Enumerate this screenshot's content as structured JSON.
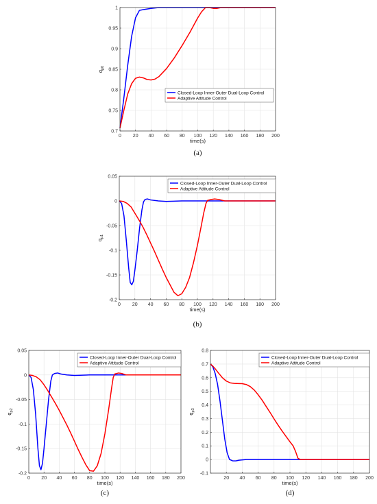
{
  "chart_data": [
    {
      "id": "a",
      "type": "line",
      "caption": "(a)",
      "xlabel": "time(s)",
      "ylabel_base": "q",
      "ylabel_sub": "p0",
      "xlim": [
        0,
        200
      ],
      "ylim": [
        0.7,
        1.0
      ],
      "xticks": [
        0,
        20,
        40,
        60,
        80,
        100,
        120,
        140,
        160,
        180,
        200
      ],
      "yticks": [
        0.7,
        0.75,
        0.8,
        0.85,
        0.9,
        0.95,
        1
      ],
      "ytick_labels": [
        "0.7",
        "0.75",
        "0.8",
        "0.85",
        "0.9",
        "0.95",
        "1"
      ],
      "grid": true,
      "legend_position": "lower-right",
      "series": [
        {
          "name": "Closed-Loop Inner-Outer Dual-Loop Control",
          "color": "#0000ff",
          "points": [
            [
              0,
              0.707
            ],
            [
              5,
              0.78
            ],
            [
              10,
              0.86
            ],
            [
              15,
              0.93
            ],
            [
              20,
              0.975
            ],
            [
              25,
              0.993
            ],
            [
              30,
              0.995
            ],
            [
              40,
              0.998
            ],
            [
              50,
              1.0
            ],
            [
              60,
              1.0
            ],
            [
              100,
              1.0
            ],
            [
              150,
              1.0
            ],
            [
              200,
              1.0
            ]
          ]
        },
        {
          "name": "Adaptive Attitude Control",
          "color": "#ff0000",
          "points": [
            [
              0,
              0.707
            ],
            [
              5,
              0.75
            ],
            [
              10,
              0.79
            ],
            [
              15,
              0.815
            ],
            [
              20,
              0.828
            ],
            [
              25,
              0.831
            ],
            [
              30,
              0.829
            ],
            [
              35,
              0.825
            ],
            [
              40,
              0.824
            ],
            [
              45,
              0.826
            ],
            [
              50,
              0.832
            ],
            [
              60,
              0.852
            ],
            [
              70,
              0.878
            ],
            [
              80,
              0.908
            ],
            [
              90,
              0.94
            ],
            [
              100,
              0.975
            ],
            [
              105,
              0.99
            ],
            [
              110,
              1.0
            ],
            [
              115,
              1.0
            ],
            [
              120,
              0.998
            ],
            [
              125,
              0.998
            ],
            [
              130,
              1.0
            ],
            [
              150,
              1.0
            ],
            [
              200,
              1.0
            ]
          ]
        }
      ]
    },
    {
      "id": "b",
      "type": "line",
      "caption": "(b)",
      "xlabel": "time(s)",
      "ylabel_base": "q",
      "ylabel_sub": "p1",
      "xlim": [
        0,
        200
      ],
      "ylim": [
        -0.2,
        0.05
      ],
      "xticks": [
        0,
        20,
        40,
        60,
        80,
        100,
        120,
        140,
        160,
        180,
        200
      ],
      "yticks": [
        -0.2,
        -0.15,
        -0.1,
        -0.05,
        0,
        0.05
      ],
      "ytick_labels": [
        "-0.2",
        "-0.15",
        "-0.1",
        "-0.05",
        "0",
        "0.05"
      ],
      "grid": true,
      "legend_position": "top-right",
      "series": [
        {
          "name": "Closed-Loop Inner-Outer Dual-Loop Control",
          "color": "#0000ff",
          "points": [
            [
              0,
              0
            ],
            [
              3,
              -0.005
            ],
            [
              6,
              -0.03
            ],
            [
              9,
              -0.08
            ],
            [
              12,
              -0.135
            ],
            [
              14,
              -0.165
            ],
            [
              16,
              -0.17
            ],
            [
              18,
              -0.163
            ],
            [
              20,
              -0.14
            ],
            [
              23,
              -0.1
            ],
            [
              26,
              -0.055
            ],
            [
              29,
              -0.018
            ],
            [
              31,
              -0.002
            ],
            [
              33,
              0.003
            ],
            [
              36,
              0.004
            ],
            [
              40,
              0.002
            ],
            [
              50,
              0
            ],
            [
              60,
              -0.001
            ],
            [
              80,
              0
            ],
            [
              200,
              0
            ]
          ]
        },
        {
          "name": "Adaptive Attitude Control",
          "color": "#ff0000",
          "points": [
            [
              0,
              0
            ],
            [
              5,
              -0.001
            ],
            [
              10,
              -0.005
            ],
            [
              15,
              -0.012
            ],
            [
              20,
              -0.025
            ],
            [
              25,
              -0.038
            ],
            [
              30,
              -0.052
            ],
            [
              35,
              -0.068
            ],
            [
              40,
              -0.085
            ],
            [
              45,
              -0.102
            ],
            [
              50,
              -0.12
            ],
            [
              55,
              -0.138
            ],
            [
              60,
              -0.155
            ],
            [
              65,
              -0.17
            ],
            [
              70,
              -0.185
            ],
            [
              75,
              -0.192
            ],
            [
              80,
              -0.188
            ],
            [
              85,
              -0.175
            ],
            [
              90,
              -0.155
            ],
            [
              95,
              -0.125
            ],
            [
              100,
              -0.09
            ],
            [
              105,
              -0.05
            ],
            [
              108,
              -0.025
            ],
            [
              111,
              -0.005
            ],
            [
              113,
              0.001
            ],
            [
              118,
              0.003
            ],
            [
              122,
              0.004
            ],
            [
              127,
              0.003
            ],
            [
              135,
              0
            ],
            [
              200,
              0
            ]
          ]
        }
      ]
    },
    {
      "id": "c",
      "type": "line",
      "caption": "(c)",
      "xlabel": "time(s)",
      "ylabel_base": "q",
      "ylabel_sub": "p2",
      "xlim": [
        0,
        200
      ],
      "ylim": [
        -0.2,
        0.05
      ],
      "xticks": [
        0,
        20,
        40,
        60,
        80,
        100,
        120,
        140,
        160,
        180,
        200
      ],
      "yticks": [
        -0.2,
        -0.15,
        -0.1,
        -0.05,
        0,
        0.05
      ],
      "ytick_labels": [
        "-0.2",
        "-0.15",
        "-0.1",
        "-0.05",
        "0",
        "0.05"
      ],
      "grid": true,
      "legend_position": "top-right",
      "series": [
        {
          "name": "Closed-Loop Inner-Outer Dual-Loop Control",
          "color": "#0000ff",
          "points": [
            [
              0,
              0
            ],
            [
              3,
              -0.005
            ],
            [
              6,
              -0.03
            ],
            [
              9,
              -0.08
            ],
            [
              12,
              -0.15
            ],
            [
              14,
              -0.185
            ],
            [
              16,
              -0.193
            ],
            [
              18,
              -0.18
            ],
            [
              20,
              -0.15
            ],
            [
              23,
              -0.1
            ],
            [
              26,
              -0.05
            ],
            [
              29,
              -0.012
            ],
            [
              31,
              0
            ],
            [
              34,
              0.003
            ],
            [
              38,
              0.004
            ],
            [
              42,
              0.002
            ],
            [
              50,
              0
            ],
            [
              60,
              -0.001
            ],
            [
              80,
              0
            ],
            [
              200,
              0
            ]
          ]
        },
        {
          "name": "Adaptive Attitude Control",
          "color": "#ff0000",
          "points": [
            [
              0,
              0
            ],
            [
              5,
              -0.001
            ],
            [
              10,
              -0.004
            ],
            [
              15,
              -0.01
            ],
            [
              20,
              -0.02
            ],
            [
              25,
              -0.032
            ],
            [
              30,
              -0.045
            ],
            [
              35,
              -0.058
            ],
            [
              40,
              -0.072
            ],
            [
              45,
              -0.087
            ],
            [
              50,
              -0.102
            ],
            [
              55,
              -0.118
            ],
            [
              60,
              -0.135
            ],
            [
              65,
              -0.152
            ],
            [
              70,
              -0.168
            ],
            [
              75,
              -0.183
            ],
            [
              80,
              -0.195
            ],
            [
              85,
              -0.196
            ],
            [
              90,
              -0.185
            ],
            [
              95,
              -0.16
            ],
            [
              100,
              -0.12
            ],
            [
              105,
              -0.07
            ],
            [
              109,
              -0.025
            ],
            [
              111,
              -0.005
            ],
            [
              113,
              0.002
            ],
            [
              118,
              0.004
            ],
            [
              122,
              0.003
            ],
            [
              128,
              0
            ],
            [
              200,
              0
            ]
          ]
        }
      ]
    },
    {
      "id": "d",
      "type": "line",
      "caption": "(d)",
      "xlabel": "time(s)",
      "ylabel_base": "q",
      "ylabel_sub": "p3",
      "xlim": [
        0,
        200
      ],
      "ylim": [
        -0.1,
        0.8
      ],
      "xticks": [
        20,
        40,
        60,
        80,
        100,
        120,
        140,
        160,
        180,
        200
      ],
      "yticks": [
        -0.1,
        0,
        0.1,
        0.2,
        0.3,
        0.4,
        0.5,
        0.6,
        0.7,
        0.8
      ],
      "ytick_labels": [
        "-0.1",
        "0",
        "0.1",
        "0.2",
        "0.3",
        "0.4",
        "0.5",
        "0.6",
        "0.7",
        "0.8"
      ],
      "grid": true,
      "legend_position": "top-right",
      "series": [
        {
          "name": "Closed-Loop Inner-Outer Dual-Loop Control",
          "color": "#0000ff",
          "points": [
            [
              0,
              0.7
            ],
            [
              3,
              0.68
            ],
            [
              6,
              0.63
            ],
            [
              9,
              0.55
            ],
            [
              12,
              0.43
            ],
            [
              15,
              0.29
            ],
            [
              18,
              0.15
            ],
            [
              21,
              0.05
            ],
            [
              24,
              0
            ],
            [
              28,
              -0.01
            ],
            [
              32,
              -0.01
            ],
            [
              36,
              -0.005
            ],
            [
              45,
              0
            ],
            [
              60,
              0
            ],
            [
              200,
              0
            ]
          ]
        },
        {
          "name": "Adaptive Attitude Control",
          "color": "#ff0000",
          "points": [
            [
              0,
              0.7
            ],
            [
              3,
              0.685
            ],
            [
              6,
              0.665
            ],
            [
              10,
              0.635
            ],
            [
              15,
              0.6
            ],
            [
              20,
              0.575
            ],
            [
              25,
              0.562
            ],
            [
              30,
              0.558
            ],
            [
              35,
              0.557
            ],
            [
              40,
              0.556
            ],
            [
              45,
              0.55
            ],
            [
              50,
              0.535
            ],
            [
              55,
              0.51
            ],
            [
              60,
              0.475
            ],
            [
              65,
              0.435
            ],
            [
              70,
              0.39
            ],
            [
              75,
              0.345
            ],
            [
              80,
              0.298
            ],
            [
              85,
              0.253
            ],
            [
              90,
              0.21
            ],
            [
              95,
              0.17
            ],
            [
              100,
              0.13
            ],
            [
              104,
              0.1
            ],
            [
              107,
              0.06
            ],
            [
              110,
              0.01
            ],
            [
              113,
              0
            ],
            [
              120,
              0
            ],
            [
              200,
              0
            ]
          ]
        }
      ]
    }
  ]
}
